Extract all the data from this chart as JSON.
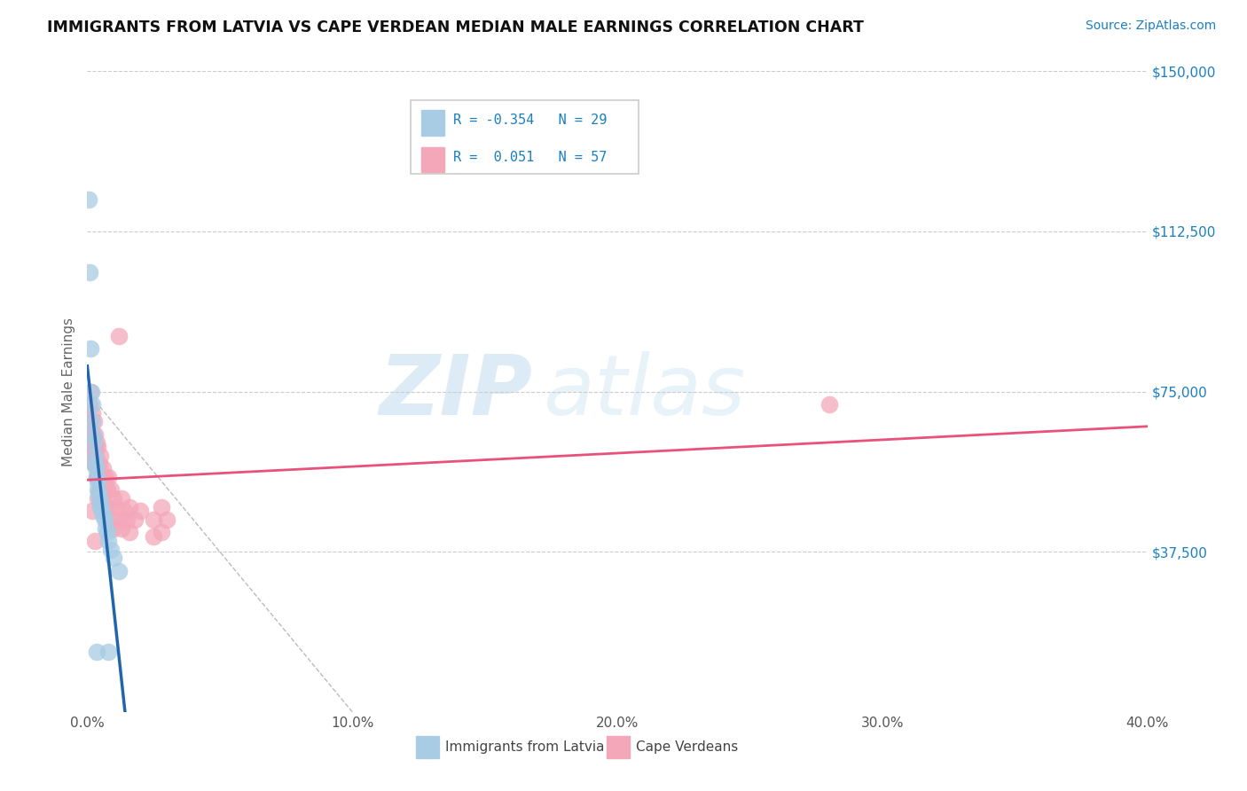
{
  "title": "IMMIGRANTS FROM LATVIA VS CAPE VERDEAN MEDIAN MALE EARNINGS CORRELATION CHART",
  "source": "Source: ZipAtlas.com",
  "ylabel": "Median Male Earnings",
  "xmin": 0.0,
  "xmax": 0.4,
  "ymin": 0,
  "ymax": 150000,
  "color_blue": "#a8cce4",
  "color_pink": "#f4a7b9",
  "color_blue_line": "#2166ac",
  "color_pink_line": "#e8527a",
  "watermark_zip": "ZIP",
  "watermark_atlas": "atlas",
  "latvia_points": [
    [
      0.0005,
      120000
    ],
    [
      0.001,
      103000
    ],
    [
      0.0012,
      85000
    ],
    [
      0.0015,
      75000
    ],
    [
      0.0018,
      72000
    ],
    [
      0.002,
      68000
    ],
    [
      0.0022,
      65000
    ],
    [
      0.0025,
      63000
    ],
    [
      0.0028,
      60000
    ],
    [
      0.003,
      58000
    ],
    [
      0.0032,
      57000
    ],
    [
      0.0035,
      55000
    ],
    [
      0.0038,
      54000
    ],
    [
      0.004,
      52000
    ],
    [
      0.0042,
      51000
    ],
    [
      0.0045,
      50000
    ],
    [
      0.0048,
      49000
    ],
    [
      0.005,
      48000
    ],
    [
      0.0055,
      47000
    ],
    [
      0.006,
      46000
    ],
    [
      0.0065,
      45000
    ],
    [
      0.007,
      43000
    ],
    [
      0.0075,
      42000
    ],
    [
      0.008,
      40000
    ],
    [
      0.009,
      38000
    ],
    [
      0.01,
      36000
    ],
    [
      0.012,
      33000
    ],
    [
      0.0035,
      14000
    ],
    [
      0.008,
      14000
    ]
  ],
  "capeverdean_points": [
    [
      0.0008,
      72000
    ],
    [
      0.001,
      68000
    ],
    [
      0.0012,
      75000
    ],
    [
      0.0015,
      65000
    ],
    [
      0.0015,
      62000
    ],
    [
      0.0018,
      70000
    ],
    [
      0.002,
      65000
    ],
    [
      0.0022,
      60000
    ],
    [
      0.0025,
      68000
    ],
    [
      0.0025,
      58000
    ],
    [
      0.0028,
      62000
    ],
    [
      0.003,
      65000
    ],
    [
      0.003,
      58000
    ],
    [
      0.0032,
      60000
    ],
    [
      0.0035,
      63000
    ],
    [
      0.0035,
      55000
    ],
    [
      0.0038,
      58000
    ],
    [
      0.004,
      62000
    ],
    [
      0.004,
      55000
    ],
    [
      0.004,
      50000
    ],
    [
      0.0045,
      58000
    ],
    [
      0.0045,
      52000
    ],
    [
      0.0048,
      55000
    ],
    [
      0.005,
      60000
    ],
    [
      0.005,
      52000
    ],
    [
      0.0055,
      55000
    ],
    [
      0.006,
      57000
    ],
    [
      0.006,
      50000
    ],
    [
      0.0065,
      53000
    ],
    [
      0.007,
      55000
    ],
    [
      0.007,
      48000
    ],
    [
      0.0075,
      52000
    ],
    [
      0.008,
      55000
    ],
    [
      0.008,
      48000
    ],
    [
      0.009,
      52000
    ],
    [
      0.009,
      45000
    ],
    [
      0.01,
      50000
    ],
    [
      0.01,
      43000
    ],
    [
      0.011,
      48000
    ],
    [
      0.012,
      45000
    ],
    [
      0.013,
      50000
    ],
    [
      0.013,
      43000
    ],
    [
      0.014,
      47000
    ],
    [
      0.015,
      45000
    ],
    [
      0.016,
      48000
    ],
    [
      0.016,
      42000
    ],
    [
      0.018,
      45000
    ],
    [
      0.02,
      47000
    ],
    [
      0.025,
      45000
    ],
    [
      0.025,
      41000
    ],
    [
      0.012,
      88000
    ],
    [
      0.028,
      48000
    ],
    [
      0.028,
      42000
    ],
    [
      0.03,
      45000
    ],
    [
      0.28,
      72000
    ],
    [
      0.003,
      40000
    ],
    [
      0.0018,
      47000
    ]
  ]
}
